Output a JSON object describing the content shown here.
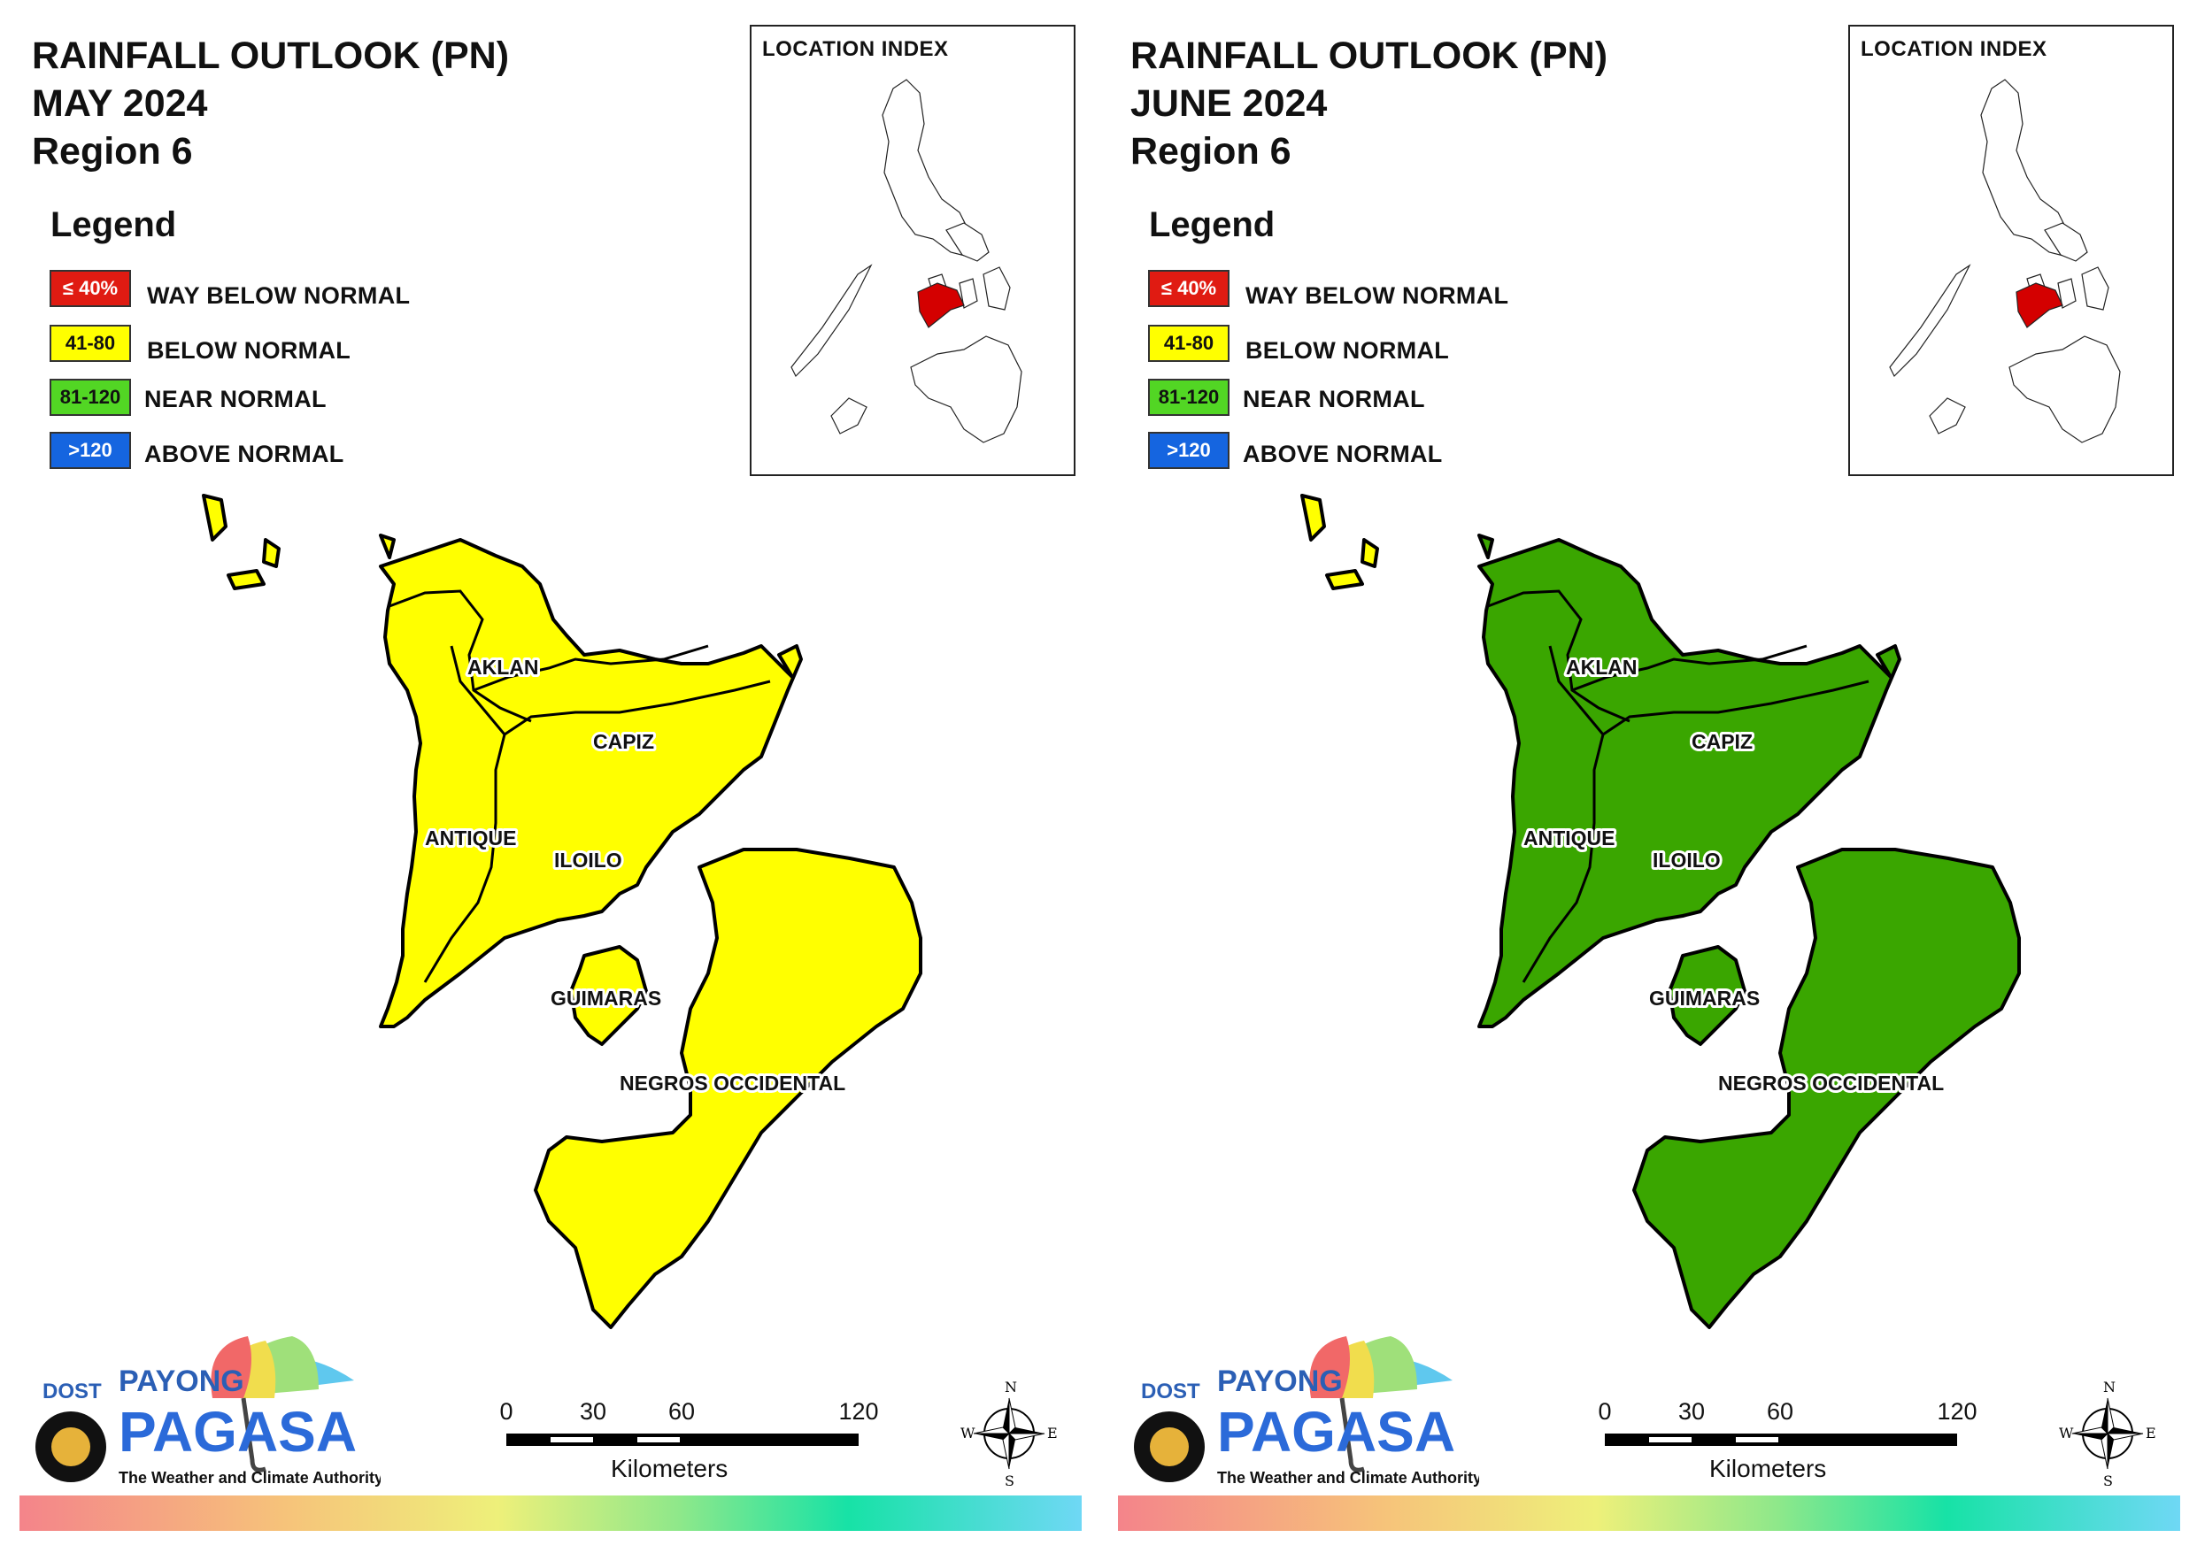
{
  "colors": {
    "way_below": "#e01b12",
    "below": "#ffff00",
    "near": "#52d624",
    "above": "#1565e0",
    "map_fill_may": "#ffff00",
    "map_fill_june": "#3aa600",
    "highlight": "#d40000"
  },
  "panels": [
    {
      "title_line1": "RAINFALL OUTLOOK (PN)",
      "title_line2": "MAY 2024",
      "title_line3": "Region 6",
      "fill_status": "BELOW NORMAL"
    },
    {
      "title_line1": "RAINFALL OUTLOOK (PN)",
      "title_line2": "JUNE 2024",
      "title_line3": "Region 6",
      "fill_status": "NEAR NORMAL"
    }
  ],
  "legend": {
    "title": "Legend",
    "items": [
      {
        "range": "≤ 40%",
        "label": "WAY BELOW NORMAL"
      },
      {
        "range": "41-80",
        "label": "BELOW NORMAL"
      },
      {
        "range": "81-120",
        "label": "NEAR NORMAL"
      },
      {
        "range": ">120",
        "label": "ABOVE NORMAL"
      }
    ]
  },
  "location_index": {
    "title": "LOCATION INDEX"
  },
  "provinces": {
    "aklan": "AKLAN",
    "capiz": "CAPIZ",
    "antique": "ANTIQUE",
    "iloilo": "ILOILO",
    "guimaras": "GUIMARAS",
    "negros": "NEGROS OCCIDENTAL"
  },
  "scale_bar": {
    "ticks": [
      "0",
      "30",
      "60",
      "120"
    ],
    "unit": "Kilometers"
  },
  "compass": {
    "n": "N",
    "s": "S",
    "e": "E",
    "w": "W"
  },
  "logo": {
    "dost": "DOST",
    "payong": "PAYONG",
    "pagasa": "PAGASA",
    "tagline": "The Weather and Climate Authority"
  }
}
